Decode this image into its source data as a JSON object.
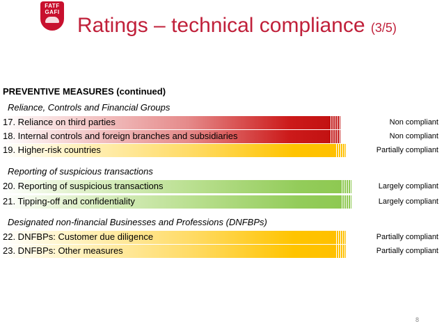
{
  "logo": {
    "line1": "FATF",
    "line2": "GAFI"
  },
  "title": {
    "main": "Ratings – technical compliance",
    "page": "(3/5)"
  },
  "section": "PREVENTIVE MEASURES (continued)",
  "groups": [
    {
      "label": "Reliance, Controls and Financial Groups"
    },
    {
      "label": "Reporting of suspicious transactions"
    },
    {
      "label": "Designated non-financial Businesses and Professions (DNFBPs)"
    }
  ],
  "rows": [
    {
      "label": "17. Reliance on third parties",
      "rating": "Non compliant",
      "color": "#c01010"
    },
    {
      "label": "18. Internal controls and foreign branches and subsidiaries",
      "rating": "Non compliant",
      "color": "#c01010"
    },
    {
      "label": "19. Higher-risk countries",
      "rating": "Partially compliant",
      "color": "#ffc000"
    },
    {
      "label": "20. Reporting of suspicious transactions",
      "rating": "Largely compliant",
      "color": "#8dc850"
    },
    {
      "label": "21. Tipping-off and confidentiality",
      "rating": "Largely compliant",
      "color": "#8dc850"
    },
    {
      "label": "22. DNFBPs: Customer due diligence",
      "rating": "Partially compliant",
      "color": "#ffc000"
    },
    {
      "label": "23. DNFBPs: Other measures",
      "rating": "Partially compliant",
      "color": "#ffc000"
    }
  ],
  "page_number": "8"
}
